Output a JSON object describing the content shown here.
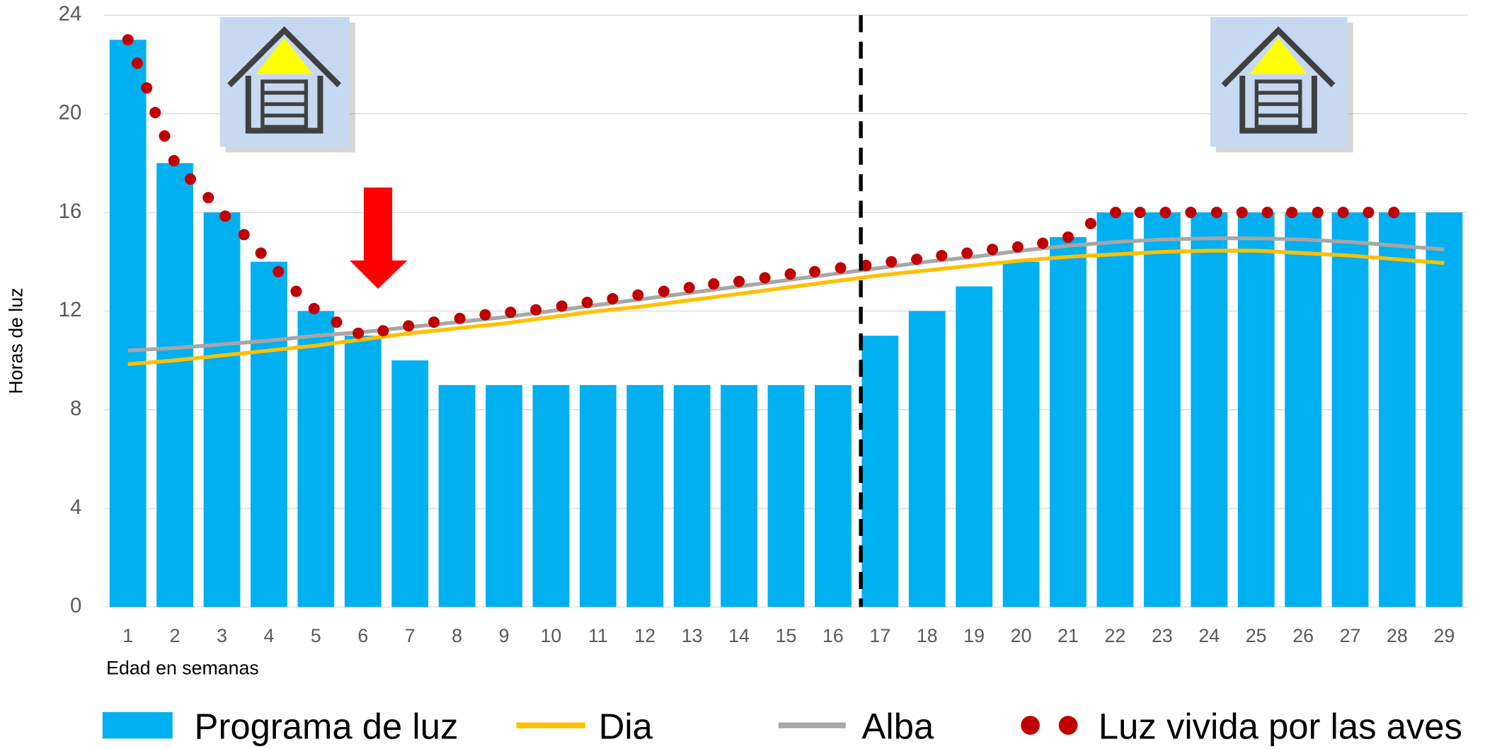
{
  "chart_data": {
    "type": "bar",
    "y_label": "Horas de luz",
    "x_label": "Edad en semanas",
    "categories": [
      "1",
      "2",
      "3",
      "4",
      "5",
      "6",
      "7",
      "8",
      "9",
      "10",
      "11",
      "12",
      "13",
      "14",
      "15",
      "16",
      "17",
      "18",
      "19",
      "20",
      "21",
      "22",
      "23",
      "24",
      "25",
      "26",
      "27",
      "28",
      "29"
    ],
    "ylim": [
      0,
      24
    ],
    "yticks": [
      0,
      4,
      8,
      12,
      16,
      20,
      24
    ],
    "grid": true,
    "series": [
      {
        "name": "Programa de luz",
        "type": "bar",
        "color": "#00b0f0",
        "values": [
          23,
          18,
          16,
          14,
          12,
          11,
          10,
          9,
          9,
          9,
          9,
          9,
          9,
          9,
          9,
          9,
          11,
          12,
          13,
          14,
          15,
          16,
          16,
          16,
          16,
          16,
          16,
          16,
          16
        ]
      },
      {
        "name": "Dia",
        "type": "line",
        "color": "#ffc000",
        "values": [
          9.85,
          10.0,
          10.2,
          10.4,
          10.6,
          10.85,
          11.1,
          11.3,
          11.5,
          11.75,
          12.0,
          12.2,
          12.45,
          12.7,
          12.95,
          13.2,
          13.45,
          13.65,
          13.85,
          14.05,
          14.2,
          14.3,
          14.4,
          14.45,
          14.45,
          14.35,
          14.25,
          14.1,
          13.95
        ]
      },
      {
        "name": "Alba",
        "type": "line",
        "color": "#a6a6a6",
        "values": [
          10.4,
          10.5,
          10.65,
          10.8,
          11.0,
          11.15,
          11.35,
          11.55,
          11.75,
          12.0,
          12.25,
          12.5,
          12.75,
          13.0,
          13.25,
          13.5,
          13.75,
          14.0,
          14.2,
          14.45,
          14.65,
          14.8,
          14.9,
          14.95,
          14.95,
          14.9,
          14.8,
          14.65,
          14.5
        ]
      },
      {
        "name": "Luz vivida por las aves",
        "type": "scatter",
        "color": "#c00000",
        "x": [
          1,
          1.2,
          1.4,
          1.58,
          1.78,
          1.98,
          2.33,
          2.71,
          3.07,
          3.47,
          3.83,
          4.2,
          4.58,
          4.96,
          5.44,
          5.9,
          6.43,
          6.97,
          7.51,
          8.06,
          8.6,
          9.14,
          9.68,
          10.23,
          10.77,
          11.31,
          11.85,
          12.4,
          12.94,
          13.46,
          14.0,
          14.55,
          15.09,
          15.61,
          16.16,
          16.7,
          17.24,
          17.78,
          18.31,
          18.85,
          19.39,
          19.93,
          20.46,
          21.0,
          21.48,
          22.01,
          22.53,
          23.07,
          23.61,
          24.16,
          24.7,
          25.24,
          25.76,
          26.31,
          26.85,
          27.39,
          27.93
        ],
        "values": [
          23.0,
          22.05,
          21.05,
          20.05,
          19.1,
          18.1,
          17.35,
          16.6,
          15.85,
          15.1,
          14.35,
          13.6,
          12.8,
          12.1,
          11.55,
          11.1,
          11.2,
          11.4,
          11.55,
          11.7,
          11.85,
          11.95,
          12.05,
          12.2,
          12.35,
          12.5,
          12.65,
          12.8,
          12.95,
          13.1,
          13.2,
          13.35,
          13.5,
          13.6,
          13.75,
          13.85,
          14.0,
          14.1,
          14.25,
          14.35,
          14.5,
          14.6,
          14.75,
          15.0,
          15.55,
          16.0,
          16.0,
          16.0,
          16.0,
          16.0,
          16.0,
          16.0,
          16.0,
          16.0,
          16.0,
          16.0,
          16.0
        ]
      }
    ]
  }
}
